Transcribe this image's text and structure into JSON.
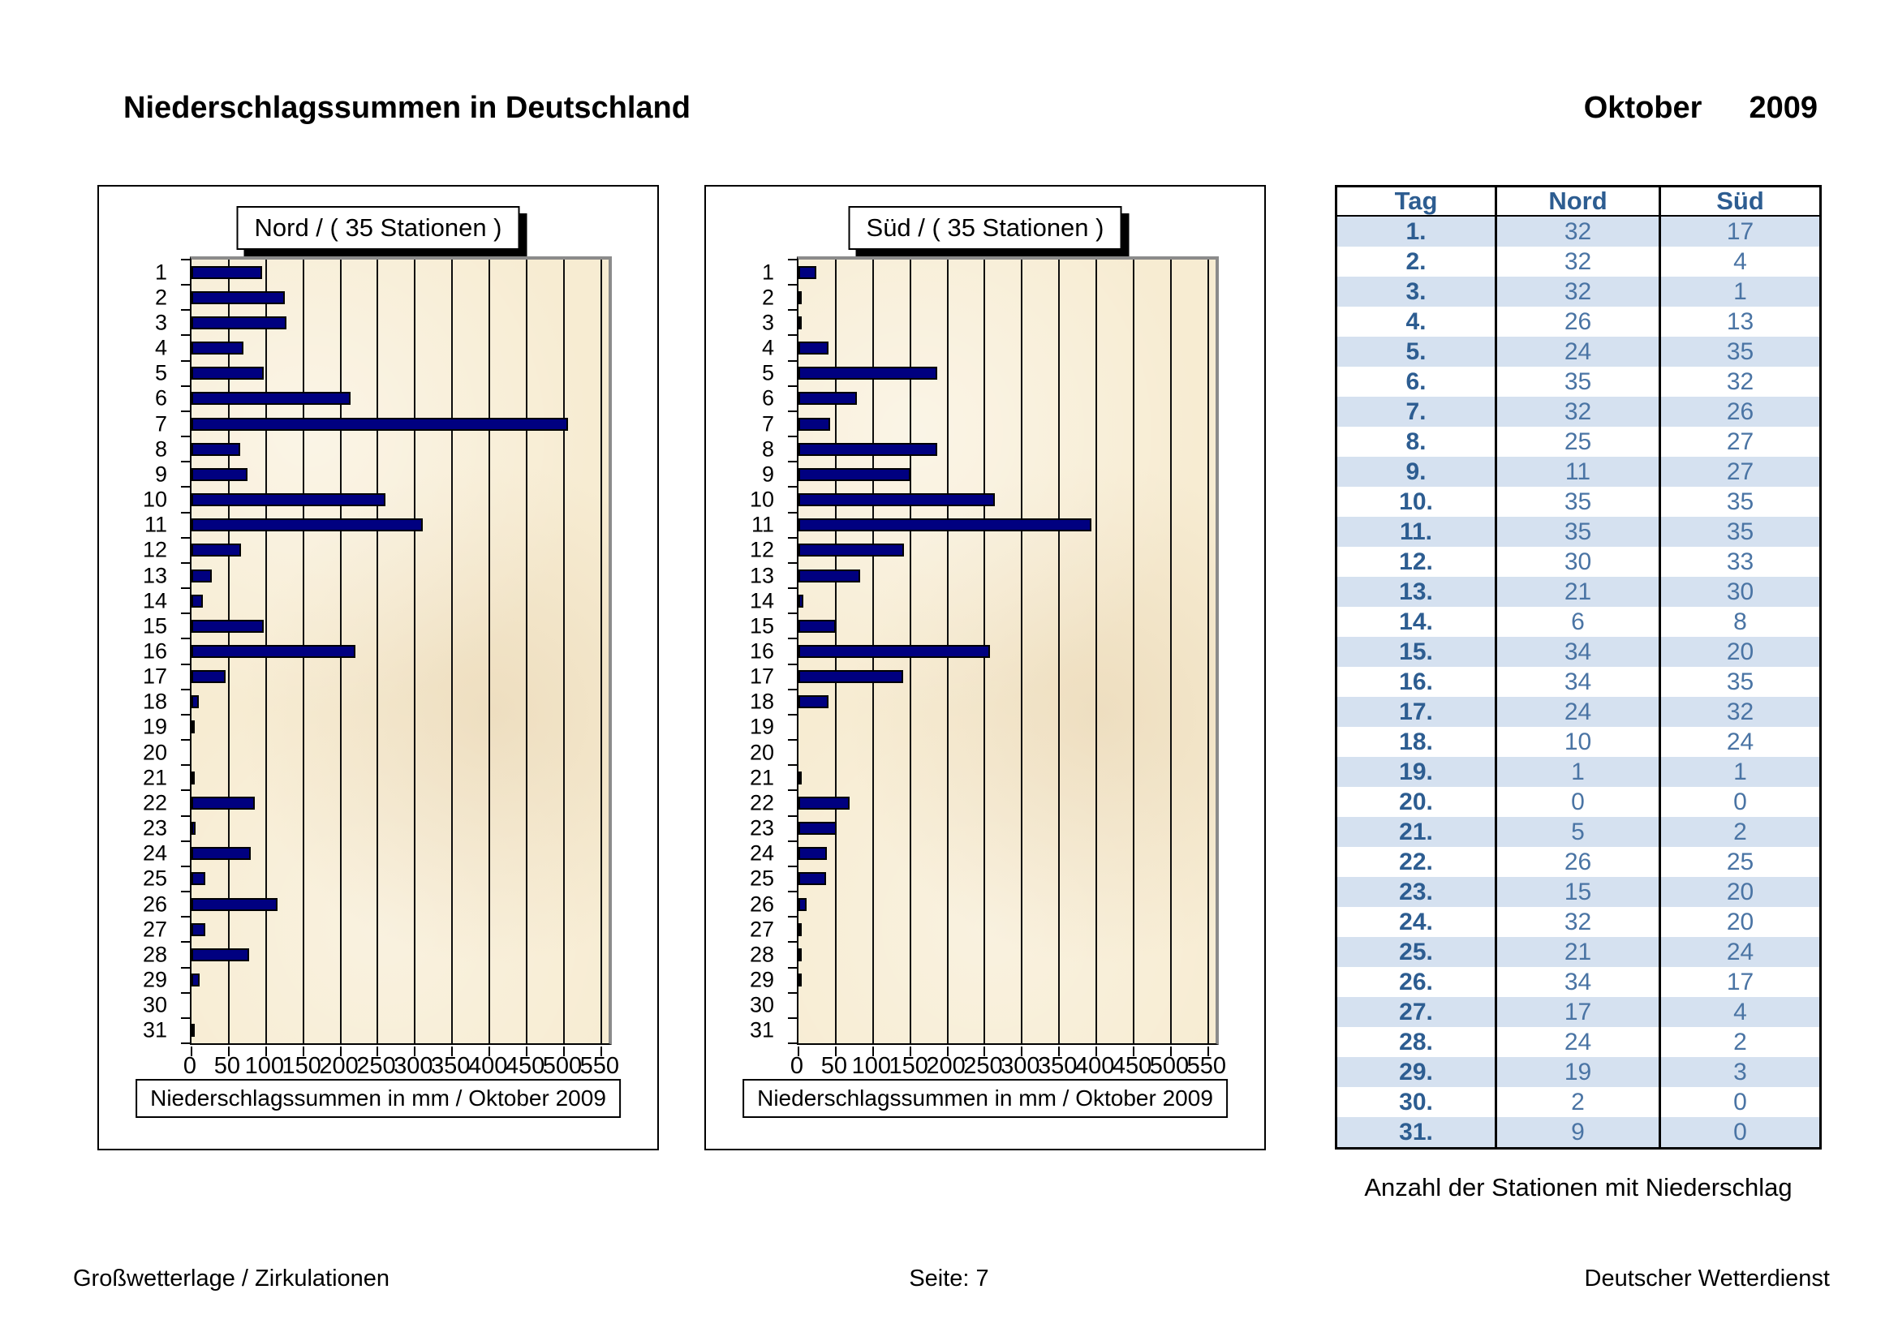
{
  "page": {
    "title": "Niederschlagssummen in Deutschland",
    "month": "Oktober",
    "year": "2009",
    "footer_left": "Großwetterlage / Zirkulationen",
    "footer_center": "Seite: 7",
    "footer_right": "Deutscher Wetterdienst"
  },
  "chart_data": [
    {
      "type": "bar",
      "orientation": "horizontal",
      "title": "Nord  /  ( 35 Stationen )",
      "caption": "Niederschlagssummen in mm / Oktober 2009",
      "categories": [
        1,
        2,
        3,
        4,
        5,
        6,
        7,
        8,
        9,
        10,
        11,
        12,
        13,
        14,
        15,
        16,
        17,
        18,
        19,
        20,
        21,
        22,
        23,
        24,
        25,
        26,
        27,
        28,
        29,
        30,
        31
      ],
      "values": [
        95,
        125,
        128,
        70,
        97,
        213,
        505,
        65,
        75,
        260,
        310,
        66,
        27,
        15,
        97,
        220,
        46,
        10,
        2,
        0,
        3,
        85,
        5,
        80,
        18,
        115,
        18,
        77,
        11,
        0,
        2
      ],
      "xlabel": "Niederschlagssumme in mm",
      "xlim": [
        0,
        560
      ],
      "xticks": [
        0,
        50,
        100,
        150,
        200,
        250,
        300,
        350,
        400,
        450,
        500,
        550
      ],
      "grid": "vertical",
      "bar_color": "#000080",
      "plot_bg": "#f7ecd2"
    },
    {
      "type": "bar",
      "orientation": "horizontal",
      "title": "Süd  /  ( 35 Stationen )",
      "caption": "Niederschlagssummen in mm / Oktober 2009",
      "categories": [
        1,
        2,
        3,
        4,
        5,
        6,
        7,
        8,
        9,
        10,
        11,
        12,
        13,
        14,
        15,
        16,
        17,
        18,
        19,
        20,
        21,
        22,
        23,
        24,
        25,
        26,
        27,
        28,
        29,
        30,
        31
      ],
      "values": [
        24,
        3,
        3,
        40,
        186,
        78,
        43,
        186,
        150,
        264,
        393,
        142,
        83,
        7,
        50,
        257,
        140,
        40,
        0,
        0,
        3,
        69,
        51,
        38,
        37,
        11,
        3,
        3,
        4,
        0,
        0
      ],
      "xlabel": "Niederschlagssumme in mm",
      "xlim": [
        0,
        560
      ],
      "xticks": [
        0,
        50,
        100,
        150,
        200,
        250,
        300,
        350,
        400,
        450,
        500,
        550
      ],
      "grid": "vertical",
      "bar_color": "#000080",
      "plot_bg": "#f7ecd2"
    }
  ],
  "table": {
    "headers": [
      "Tag",
      "Nord",
      "Süd"
    ],
    "caption": "Anzahl der Stationen mit Niederschlag",
    "rows": [
      {
        "tag": "1.",
        "nord": "32",
        "sued": "17"
      },
      {
        "tag": "2.",
        "nord": "32",
        "sued": "4"
      },
      {
        "tag": "3.",
        "nord": "32",
        "sued": "1"
      },
      {
        "tag": "4.",
        "nord": "26",
        "sued": "13"
      },
      {
        "tag": "5.",
        "nord": "24",
        "sued": "35"
      },
      {
        "tag": "6.",
        "nord": "35",
        "sued": "32"
      },
      {
        "tag": "7.",
        "nord": "32",
        "sued": "26"
      },
      {
        "tag": "8.",
        "nord": "25",
        "sued": "27"
      },
      {
        "tag": "9.",
        "nord": "11",
        "sued": "27"
      },
      {
        "tag": "10.",
        "nord": "35",
        "sued": "35"
      },
      {
        "tag": "11.",
        "nord": "35",
        "sued": "35"
      },
      {
        "tag": "12.",
        "nord": "30",
        "sued": "33"
      },
      {
        "tag": "13.",
        "nord": "21",
        "sued": "30"
      },
      {
        "tag": "14.",
        "nord": "6",
        "sued": "8"
      },
      {
        "tag": "15.",
        "nord": "34",
        "sued": "20"
      },
      {
        "tag": "16.",
        "nord": "34",
        "sued": "35"
      },
      {
        "tag": "17.",
        "nord": "24",
        "sued": "32"
      },
      {
        "tag": "18.",
        "nord": "10",
        "sued": "24"
      },
      {
        "tag": "19.",
        "nord": "1",
        "sued": "1"
      },
      {
        "tag": "20.",
        "nord": "0",
        "sued": "0"
      },
      {
        "tag": "21.",
        "nord": "5",
        "sued": "2"
      },
      {
        "tag": "22.",
        "nord": "26",
        "sued": "25"
      },
      {
        "tag": "23.",
        "nord": "15",
        "sued": "20"
      },
      {
        "tag": "24.",
        "nord": "32",
        "sued": "20"
      },
      {
        "tag": "25.",
        "nord": "21",
        "sued": "24"
      },
      {
        "tag": "26.",
        "nord": "34",
        "sued": "17"
      },
      {
        "tag": "27.",
        "nord": "17",
        "sued": "4"
      },
      {
        "tag": "28.",
        "nord": "24",
        "sued": "2"
      },
      {
        "tag": "29.",
        "nord": "19",
        "sued": "3"
      },
      {
        "tag": "30.",
        "nord": "2",
        "sued": "0"
      },
      {
        "tag": "31.",
        "nord": "9",
        "sued": "0"
      }
    ]
  }
}
